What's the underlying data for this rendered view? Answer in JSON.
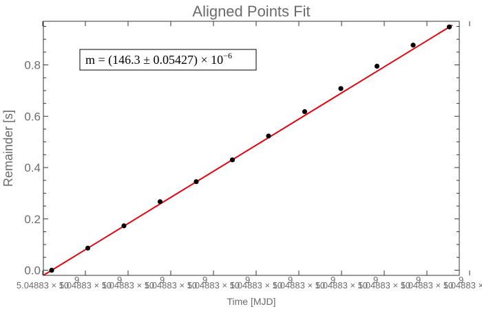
{
  "chart_data": {
    "type": "scatter",
    "title": "Aligned Points Fit",
    "xlabel": "Time [MJD]",
    "ylabel": "Remainder [s]",
    "x_tick_labels": [
      "5.04883 × 10",
      "5.04883 × 10",
      "5.04883 × 10",
      "5.04883 × 10",
      "5.04883 × 10",
      "5.04883 × 10",
      "5.04883 × 10",
      "5.04883 × 10",
      "5.04883 × 10",
      "5.04883 × 10",
      "5.04883 × 10"
    ],
    "x_tick_exponent": "9",
    "y_ticks": [
      0.0,
      0.2,
      0.4,
      0.6,
      0.8
    ],
    "y_tick_labels": [
      "0.0",
      "0.2",
      "0.4",
      "0.6",
      "0.8"
    ],
    "ylim": [
      -0.02,
      0.97
    ],
    "x": [
      0,
      1,
      2,
      3,
      4,
      5,
      6,
      7,
      8,
      9,
      10,
      11
    ],
    "series": [
      {
        "values": [
          0.0,
          0.086,
          0.173,
          0.267,
          0.345,
          0.43,
          0.523,
          0.618,
          0.708,
          0.795,
          0.877,
          0.948
        ],
        "color": "#000000"
      }
    ],
    "fit_line": {
      "y_start": -0.02,
      "y_end": 0.955,
      "color": "#e8000b"
    },
    "annotation": {
      "prefix": "m = (146.3 ± 0.05427) × 10",
      "exponent": "−6",
      "position": "top-left"
    },
    "grid": false,
    "legend": "none"
  }
}
